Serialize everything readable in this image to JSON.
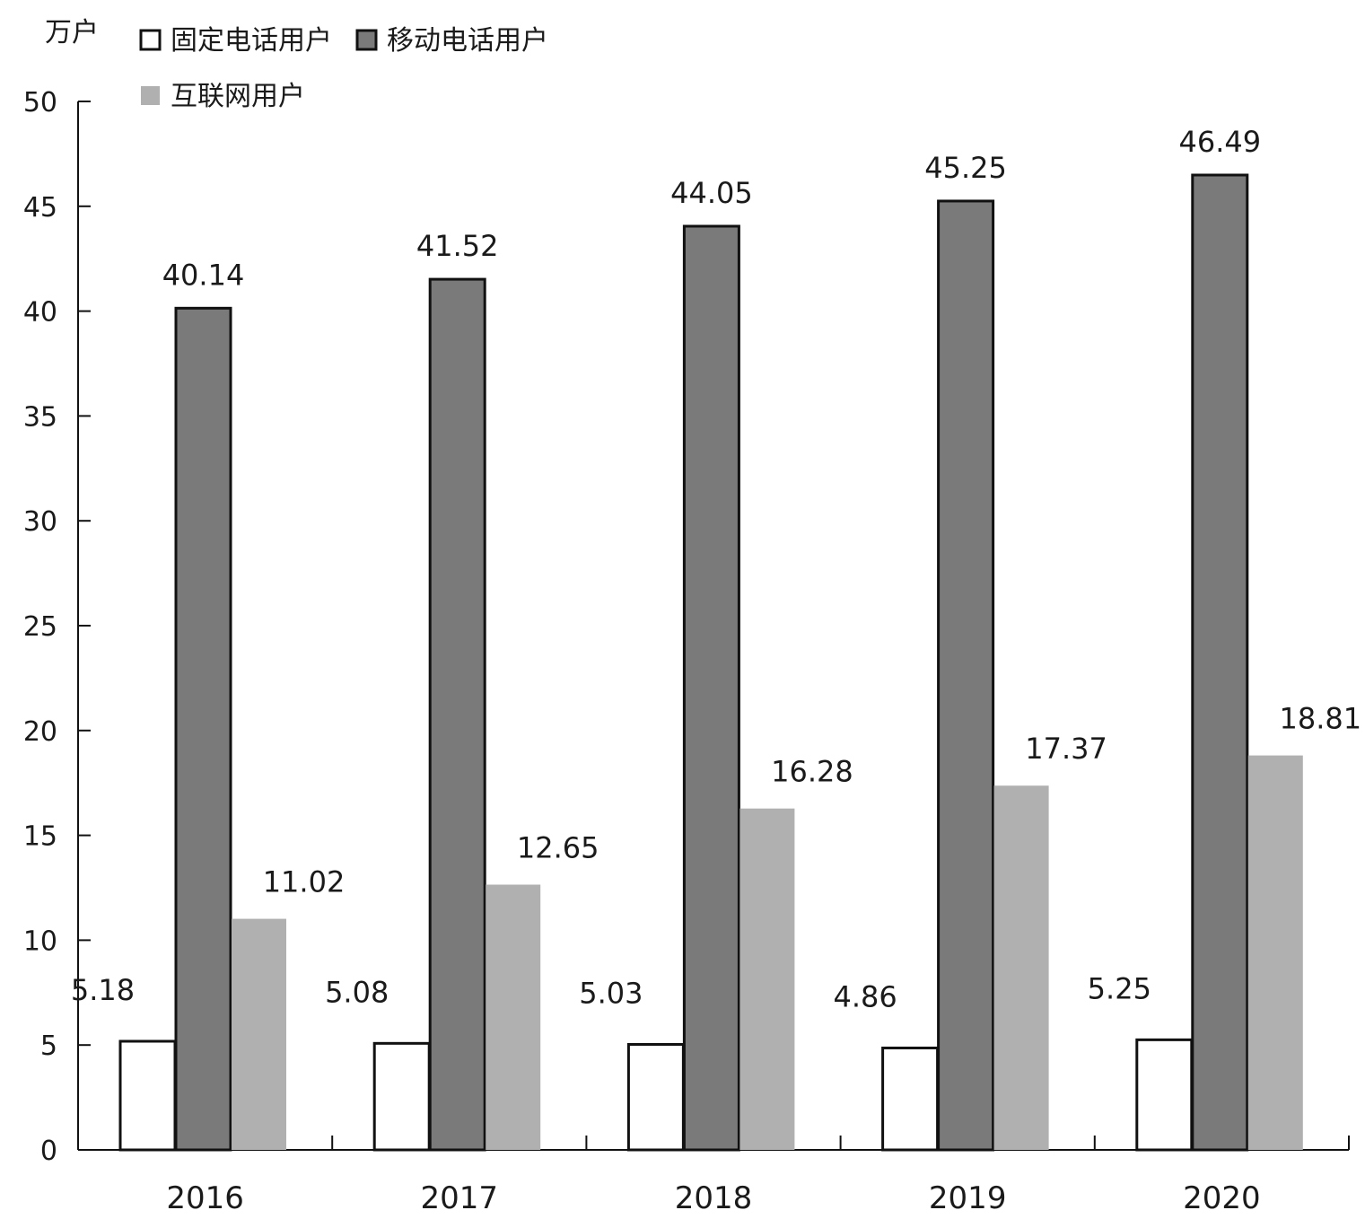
{
  "chart_data": {
    "type": "bar",
    "ylabel": "万户",
    "ylim": [
      0,
      50
    ],
    "yticks": [
      0,
      5,
      10,
      15,
      20,
      25,
      30,
      35,
      40,
      45,
      50
    ],
    "categories": [
      "2016",
      "2017",
      "2018",
      "2019",
      "2020"
    ],
    "series": [
      {
        "name": "固定电话用户",
        "color": "#ffffff",
        "stroke": "#111111",
        "values": [
          5.18,
          5.08,
          5.03,
          4.86,
          5.25
        ]
      },
      {
        "name": "移动电话用户",
        "color": "#7a7a7a",
        "stroke": "#111111",
        "values": [
          40.14,
          41.52,
          44.05,
          45.25,
          46.49
        ]
      },
      {
        "name": "互联网用户",
        "color": "#b0b0b0",
        "stroke": "none",
        "values": [
          11.02,
          12.65,
          16.28,
          17.37,
          18.81
        ]
      }
    ],
    "data_labels": [
      [
        "5.18",
        "5.08",
        "5.03",
        "4.86",
        "5.25"
      ],
      [
        "40.14",
        "41.52",
        "44.05",
        "45.25",
        "46.49"
      ],
      [
        "11.02",
        "12.65",
        "16.28",
        "17.37",
        "18.81"
      ]
    ],
    "legend_position": "top-left",
    "grid": false
  }
}
